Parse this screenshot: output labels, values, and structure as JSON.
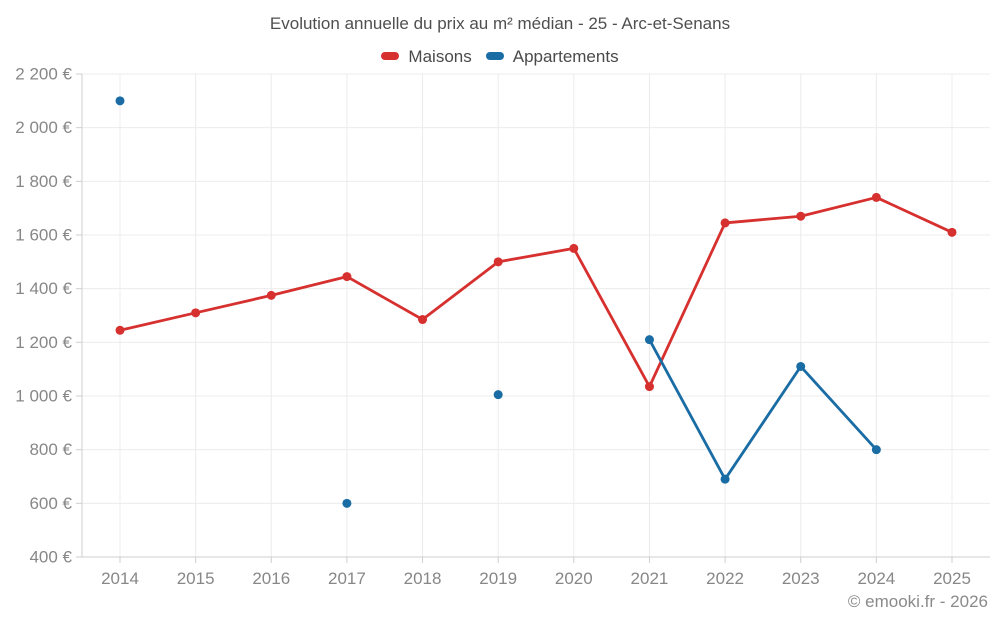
{
  "chart_data": {
    "type": "line",
    "title": "Evolution annuelle du prix au m² médian - 25 - Arc-et-Senans",
    "categories": [
      "2014",
      "2015",
      "2016",
      "2017",
      "2018",
      "2019",
      "2020",
      "2021",
      "2022",
      "2023",
      "2024",
      "2025"
    ],
    "series": [
      {
        "name": "Maisons",
        "color": "#d6302f",
        "values": [
          1245,
          1310,
          1375,
          1445,
          1285,
          1500,
          1550,
          1035,
          1645,
          1670,
          1740,
          1610
        ]
      },
      {
        "name": "Appartements",
        "color": "#1a6ca4",
        "values": [
          2100,
          null,
          null,
          600,
          null,
          1005,
          null,
          1210,
          690,
          1110,
          800,
          null
        ]
      }
    ],
    "xlabel": "",
    "ylabel": "",
    "ylim": [
      400,
      2200
    ],
    "ytick_step": 200,
    "ytick_labels": [
      "400 €",
      "600 €",
      "800 €",
      "1 000 €",
      "1 200 €",
      "1 400 €",
      "1 600 €",
      "1 800 €",
      "2 000 €",
      "2 200 €"
    ],
    "grid": true,
    "legend_position": "top",
    "point_style": "circle",
    "gaps_not_connected": true
  },
  "footer": {
    "credit": "© emooki.fr - 2026"
  }
}
